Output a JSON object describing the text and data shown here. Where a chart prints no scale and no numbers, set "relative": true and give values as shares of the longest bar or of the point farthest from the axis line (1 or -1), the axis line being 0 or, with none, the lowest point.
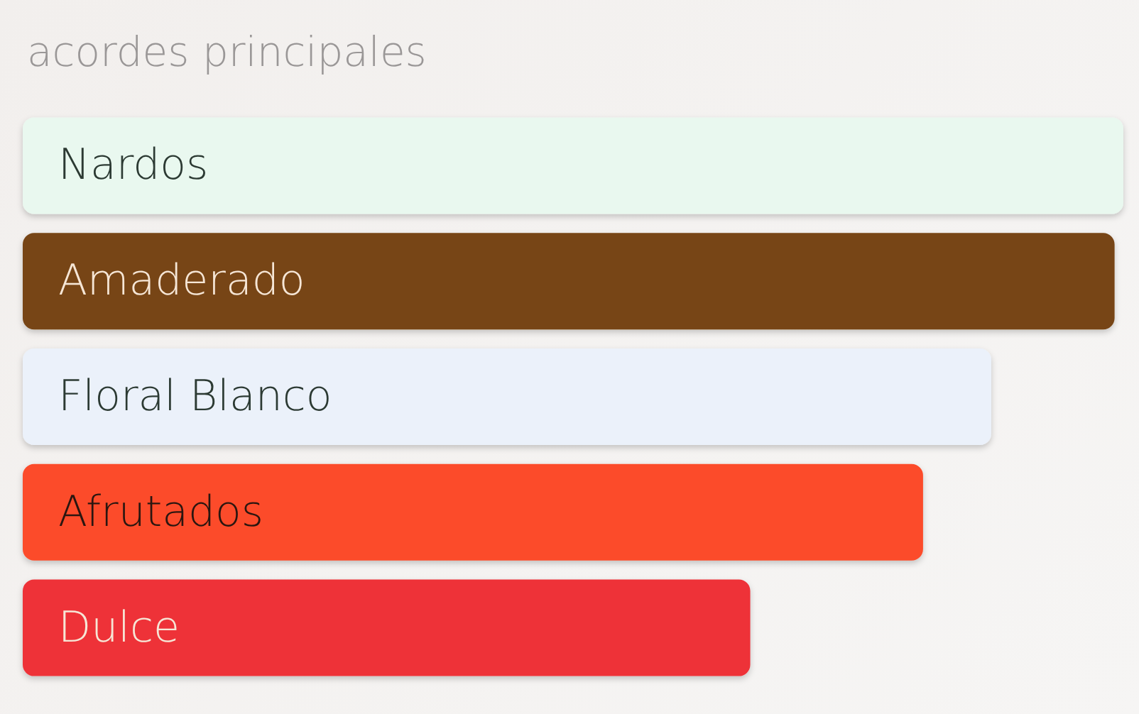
{
  "chart_data": {
    "type": "bar",
    "title": "acordes principales",
    "orientation": "horizontal",
    "relative": true,
    "categories": [
      "Nardos",
      "Amaderado",
      "Floral Blanco",
      "Afrutados",
      "Dulce"
    ],
    "values": [
      1,
      0.992,
      0.88,
      0.818,
      0.661
    ],
    "colors": [
      "#e9f8ef",
      "#774414",
      "#ebf1fa",
      "#fc4b2a",
      "#ee3239"
    ]
  }
}
